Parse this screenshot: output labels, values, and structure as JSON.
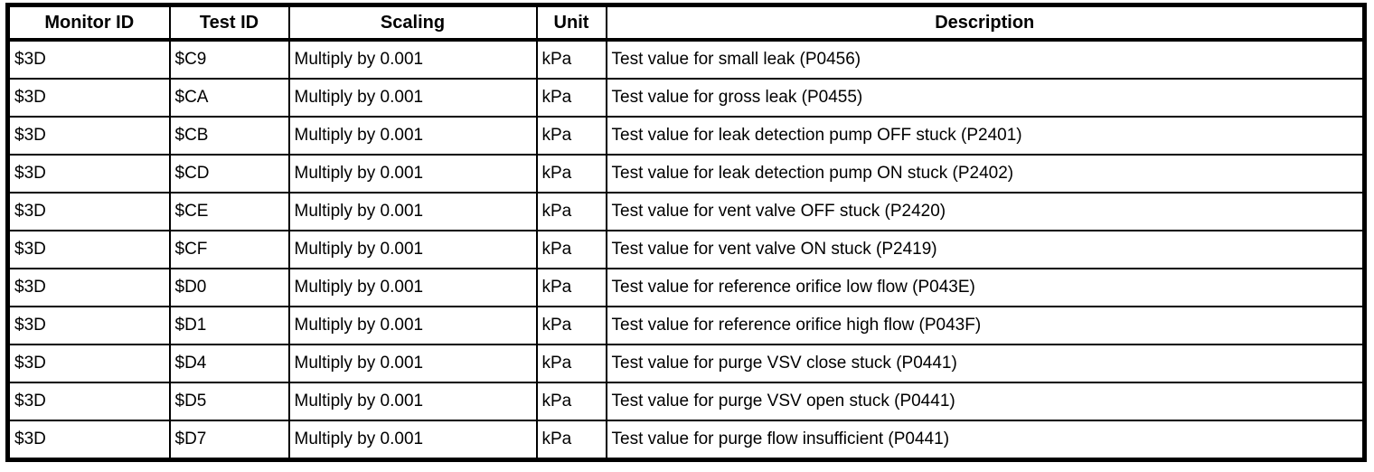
{
  "table": {
    "headers": [
      "Monitor ID",
      "Test ID",
      "Scaling",
      "Unit",
      "Description"
    ],
    "rows": [
      [
        "$3D",
        "$C9",
        "Multiply by 0.001",
        "kPa",
        "Test value for small leak (P0456)"
      ],
      [
        "$3D",
        "$CA",
        "Multiply by 0.001",
        "kPa",
        "Test value for gross leak (P0455)"
      ],
      [
        "$3D",
        "$CB",
        "Multiply by 0.001",
        "kPa",
        "Test value for leak detection pump OFF stuck (P2401)"
      ],
      [
        "$3D",
        "$CD",
        "Multiply by 0.001",
        "kPa",
        "Test value for leak detection pump ON stuck (P2402)"
      ],
      [
        "$3D",
        "$CE",
        "Multiply by 0.001",
        "kPa",
        "Test value for vent valve OFF stuck (P2420)"
      ],
      [
        "$3D",
        "$CF",
        "Multiply by 0.001",
        "kPa",
        "Test value for vent valve ON stuck (P2419)"
      ],
      [
        "$3D",
        "$D0",
        "Multiply by 0.001",
        "kPa",
        "Test value for reference orifice low flow (P043E)"
      ],
      [
        "$3D",
        "$D1",
        "Multiply by 0.001",
        "kPa",
        "Test value for reference orifice high flow (P043F)"
      ],
      [
        "$3D",
        "$D4",
        "Multiply by 0.001",
        "kPa",
        "Test value for purge VSV close stuck (P0441)"
      ],
      [
        "$3D",
        "$D5",
        "Multiply by 0.001",
        "kPa",
        "Test value for purge VSV open stuck (P0441)"
      ],
      [
        "$3D",
        "$D7",
        "Multiply by 0.001",
        "kPa",
        "Test value for purge flow insufficient (P0441)"
      ]
    ]
  },
  "colors": {
    "border": "#000000",
    "text": "#000000",
    "background": "#ffffff"
  }
}
